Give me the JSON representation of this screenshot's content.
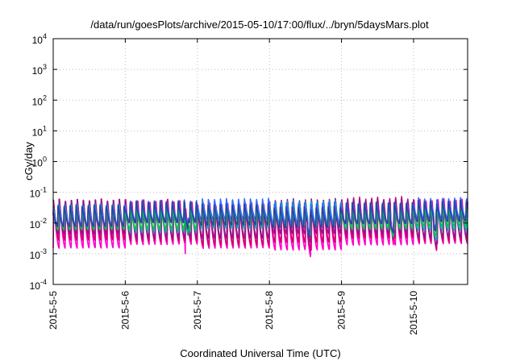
{
  "chart_data": {
    "type": "line",
    "title": "/data/run/goesPlots/archive/2015-05-10/17:00/flux/../bryn/5daysMars.plot",
    "xlabel": "Coordinated Universal Time (UTC)",
    "ylabel": "cGy/day",
    "yscale": "log",
    "ylim_exponents": [
      -4,
      4
    ],
    "ytick_exponents": [
      -4,
      -3,
      -2,
      -1,
      0,
      1,
      2,
      3,
      4
    ],
    "ytick_base": "10",
    "xlim_days": [
      0,
      5.75
    ],
    "xticks": [
      {
        "day": 0,
        "label": "2015-5-5"
      },
      {
        "day": 1,
        "label": "2015-5-6"
      },
      {
        "day": 2,
        "label": "2015-5-7"
      },
      {
        "day": 3,
        "label": "2015-5-8"
      },
      {
        "day": 4,
        "label": "2015-5-9"
      },
      {
        "day": 5,
        "label": "2015-5-10"
      }
    ],
    "grid": true,
    "legend": "none",
    "approx_cycle_period_days": 0.0833,
    "series": [
      {
        "color": "#ff00cc",
        "peak": 0.045,
        "trough": 0.0015,
        "trend": 0.35
      },
      {
        "color": "#d0006a",
        "peak": 0.05,
        "trough": 0.0022,
        "trend": 0.35
      },
      {
        "color": "#8a1a8a",
        "peak": 0.05,
        "trough": 0.0035,
        "trend": 0.3
      },
      {
        "color": "#00b8b0",
        "peak": 0.04,
        "trough": 0.006,
        "trend": 0.3
      },
      {
        "color": "#00c840",
        "peak": 0.035,
        "trough": 0.007,
        "trend": 0.3
      },
      {
        "color": "#2f6bff",
        "peak": 0.05,
        "trough": 0.01,
        "trend": 0.3
      },
      {
        "color": "#3040a0",
        "peak": 0.04,
        "trough": 0.008,
        "trend": 0.3
      }
    ]
  }
}
